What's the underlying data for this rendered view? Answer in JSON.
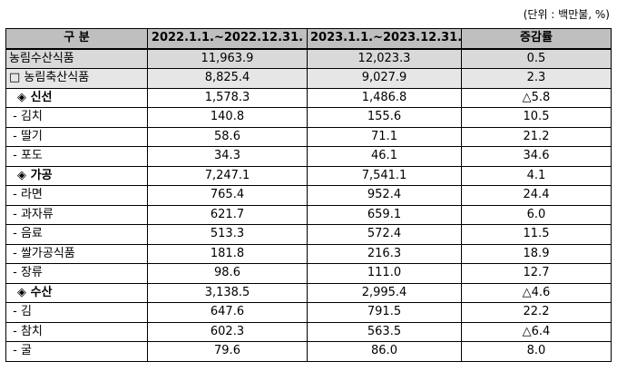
{
  "unit": "(단위 : 백만불, %)",
  "headers": [
    "구 분",
    "2022.1.1.~2022.12.31.",
    "2023.1.1.~2023.12.31.",
    "증감률"
  ],
  "rows": [
    {
      "label": "농림수산식품",
      "v2022": "11,963.9",
      "v2023": "12,023.3",
      "change": "0.5"
    },
    {
      "label": "□ 농림축산식품",
      "v2022": "8,825.4",
      "v2023": "9,027.9",
      "change": "2.3"
    },
    {
      "label": "  ◈ 신선",
      "v2022": "1,578.3",
      "v2023": "1,486.8",
      "change": "△5.8"
    },
    {
      "label": " - 김치",
      "v2022": "140.8",
      "v2023": "155.6",
      "change": "10.5"
    },
    {
      "label": " - 딸기",
      "v2022": "58.6",
      "v2023": "71.1",
      "change": "21.2"
    },
    {
      "label": " - 포도",
      "v2022": "34.3",
      "v2023": "46.1",
      "change": "34.6"
    },
    {
      "label": "  ◈ 가공",
      "v2022": "7,247.1",
      "v2023": "7,541.1",
      "change": "4.1"
    },
    {
      "label": " - 라면",
      "v2022": "765.4",
      "v2023": "952.4",
      "change": "24.4"
    },
    {
      "label": " - 과자류",
      "v2022": "621.7",
      "v2023": "659.1",
      "change": "6.0"
    },
    {
      "label": " - 음료",
      "v2022": "513.3",
      "v2023": "572.4",
      "change": "11.5"
    },
    {
      "label": " - 쌀가공식품",
      "v2022": "181.8",
      "v2023": "216.3",
      "change": "18.9"
    },
    {
      "label": " - 장류",
      "v2022": "98.6",
      "v2023": "111.0",
      "change": "12.7"
    },
    {
      "label": "  ◈ 수산",
      "v2022": "3,138.5",
      "v2023": "2,995.4",
      "change": "△4.6"
    },
    {
      "label": " - 김",
      "v2022": "647.6",
      "v2023": "791.5",
      "change": "22.2"
    },
    {
      "label": " - 참치",
      "v2022": "602.3",
      "v2023": "563.5",
      "change": "△6.4"
    },
    {
      "label": " - 굴",
      "v2022": "79.6",
      "v2023": "86.0",
      "change": "8.0"
    }
  ]
}
